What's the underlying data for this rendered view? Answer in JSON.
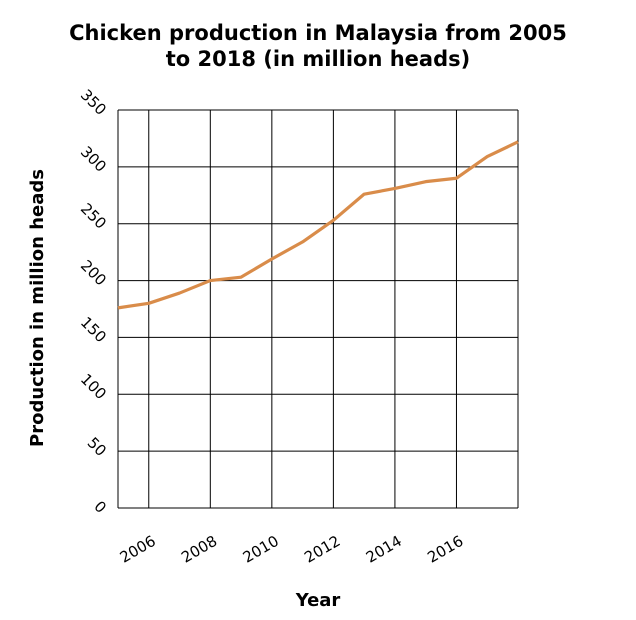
{
  "chart_data": {
    "type": "line",
    "title": "Chicken production in Malaysia from 2005 to 2018 (in million heads)",
    "title_lines": [
      "Chicken production in Malaysia from 2005",
      "to 2018 (in million heads)"
    ],
    "xlabel": "Year",
    "ylabel": "Production in million heads",
    "xlim": [
      2005,
      2018
    ],
    "ylim": [
      0,
      350
    ],
    "x_ticks": [
      2006,
      2008,
      2010,
      2012,
      2014,
      2016
    ],
    "y_ticks": [
      0,
      50,
      100,
      150,
      200,
      250,
      300,
      350
    ],
    "grid": true,
    "line_color": "#d98c4a",
    "series": [
      {
        "x": [
          2005,
          2006,
          2007,
          2008,
          2009,
          2010,
          2011,
          2012,
          2013,
          2014,
          2015,
          2016,
          2017,
          2018
        ],
        "values": [
          176,
          180,
          189,
          200,
          203,
          219,
          234,
          253,
          276,
          281,
          287,
          290,
          309,
          322
        ]
      }
    ]
  }
}
